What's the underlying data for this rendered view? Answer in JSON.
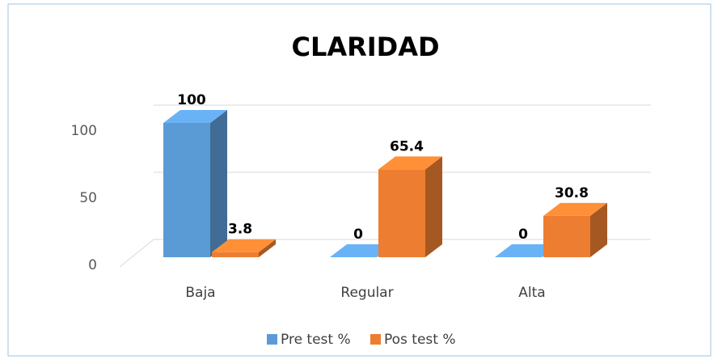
{
  "chart_data": {
    "type": "bar3d",
    "title": "CLARIDAD",
    "categories": [
      "Baja",
      "Regular",
      "Alta"
    ],
    "series": [
      {
        "name": "Pre test %",
        "color": "#5b9bd5",
        "values": [
          100,
          0,
          0
        ]
      },
      {
        "name": "Pos test %",
        "color": "#ed7d31",
        "values": [
          3.8,
          65.4,
          30.8
        ]
      }
    ],
    "ylim": [
      0,
      100
    ],
    "yticks": [
      0,
      50,
      100
    ],
    "grid": true,
    "legend": "bottom"
  }
}
